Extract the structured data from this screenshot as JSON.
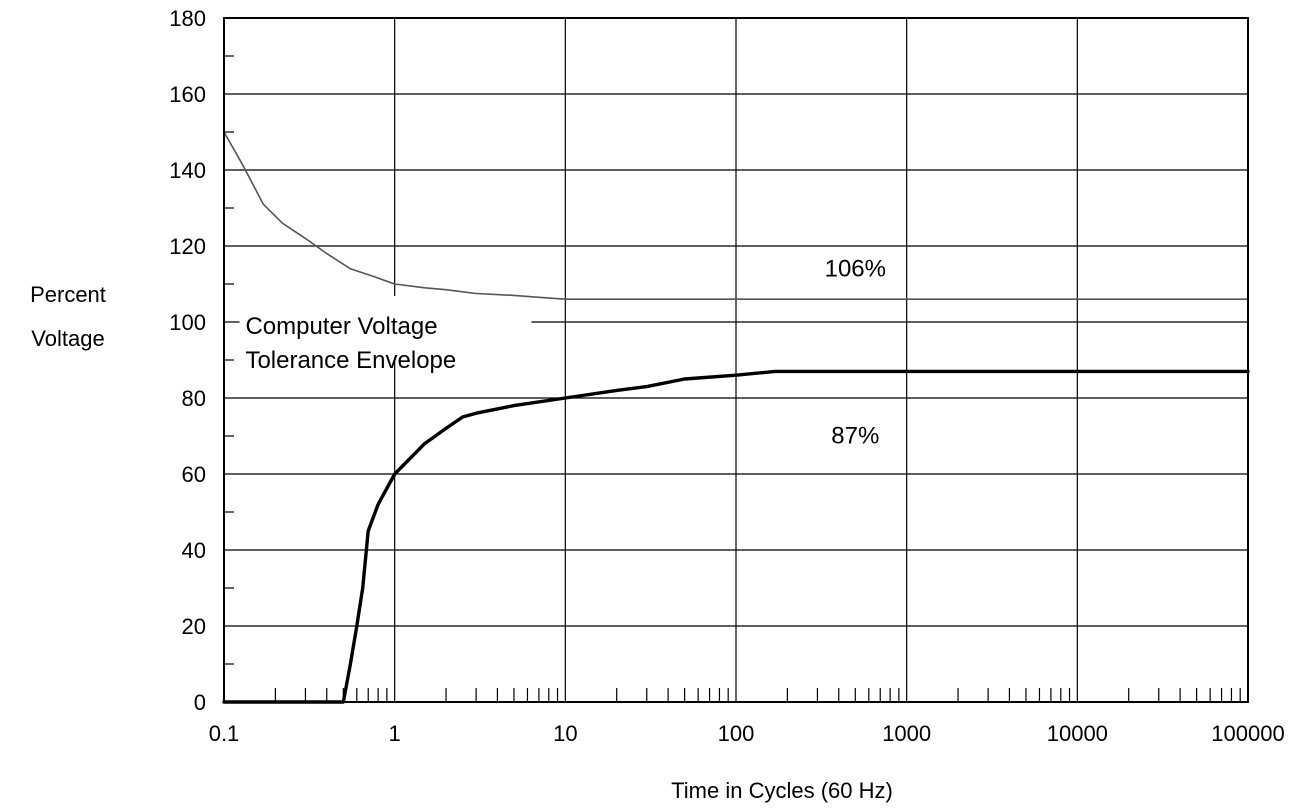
{
  "chart_data": {
    "type": "line",
    "title": "",
    "xlabel": "Time in Cycles (60 Hz)",
    "ylabel": [
      "Percent",
      "Voltage"
    ],
    "x_scale": "log",
    "xlim": [
      0.1,
      100000
    ],
    "ylim": [
      0,
      180
    ],
    "grid": true,
    "x_ticks": [
      {
        "value": 0.1,
        "label": "0.1"
      },
      {
        "value": 1,
        "label": "1"
      },
      {
        "value": 10,
        "label": "10"
      },
      {
        "value": 100,
        "label": "100"
      },
      {
        "value": 1000,
        "label": "1000"
      },
      {
        "value": 10000,
        "label": "10000"
      },
      {
        "value": 100000,
        "label": "100000"
      }
    ],
    "y_ticks": [
      {
        "value": 0,
        "label": "0"
      },
      {
        "value": 20,
        "label": "20"
      },
      {
        "value": 40,
        "label": "40"
      },
      {
        "value": 60,
        "label": "60"
      },
      {
        "value": 80,
        "label": "80"
      },
      {
        "value": 100,
        "label": "100"
      },
      {
        "value": 120,
        "label": "120"
      },
      {
        "value": 140,
        "label": "140"
      },
      {
        "value": 160,
        "label": "160"
      },
      {
        "value": 180,
        "label": "180"
      }
    ],
    "series": [
      {
        "key": "upper",
        "color": "#555555",
        "points": [
          [
            0.1,
            150
          ],
          [
            0.13,
            141
          ],
          [
            0.17,
            131
          ],
          [
            0.22,
            126
          ],
          [
            0.3,
            122
          ],
          [
            0.4,
            118
          ],
          [
            0.55,
            114
          ],
          [
            0.75,
            112
          ],
          [
            1,
            110
          ],
          [
            1.5,
            109
          ],
          [
            2,
            108.5
          ],
          [
            3,
            107.5
          ],
          [
            5,
            107
          ],
          [
            7,
            106.5
          ],
          [
            10,
            106
          ],
          [
            100000,
            106
          ]
        ]
      },
      {
        "key": "lower",
        "color": "#000000",
        "points": [
          [
            0.1,
            0
          ],
          [
            0.5,
            0
          ],
          [
            0.55,
            10
          ],
          [
            0.6,
            20
          ],
          [
            0.65,
            30
          ],
          [
            0.7,
            45
          ],
          [
            0.8,
            52
          ],
          [
            1,
            60
          ],
          [
            1.5,
            68
          ],
          [
            2,
            72
          ],
          [
            2.5,
            75
          ],
          [
            3,
            76
          ],
          [
            5,
            78
          ],
          [
            10,
            80
          ],
          [
            20,
            82
          ],
          [
            30,
            83
          ],
          [
            50,
            85
          ],
          [
            100,
            86
          ],
          [
            170,
            87
          ],
          [
            100000,
            87
          ]
        ]
      }
    ],
    "annotations": [
      {
        "text": "106%",
        "x": 500,
        "y": 112
      },
      {
        "text": "87%",
        "x": 500,
        "y": 68
      },
      {
        "lines": [
          "Computer Voltage",
          "Tolerance Envelope"
        ],
        "x": 0.13,
        "y": 100,
        "leader_to": 12
      }
    ]
  }
}
